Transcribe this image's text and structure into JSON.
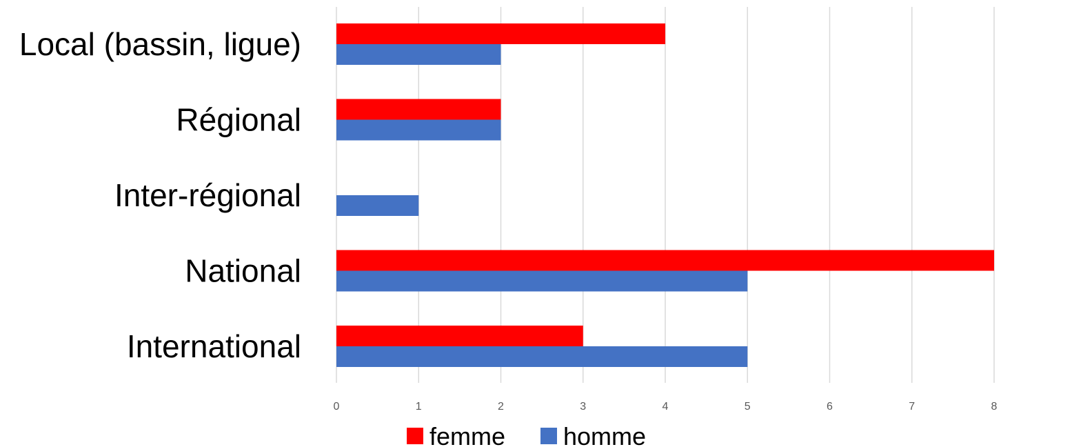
{
  "chart_data": {
    "type": "bar",
    "orientation": "horizontal",
    "categories": [
      "Local (bassin, ligue)",
      "Régional",
      "Inter-régional",
      "National",
      "International"
    ],
    "series": [
      {
        "name": "femme",
        "color": "#ff0000",
        "values": [
          4,
          2,
          0,
          8,
          3
        ]
      },
      {
        "name": "homme",
        "color": "#4472c4",
        "values": [
          2,
          2,
          1,
          5,
          5
        ]
      }
    ],
    "xlim": [
      0,
      8
    ],
    "xticks": [
      "0",
      "1",
      "2",
      "3",
      "4",
      "5",
      "6",
      "7",
      "8"
    ],
    "grid": true,
    "legend": "bottom"
  }
}
